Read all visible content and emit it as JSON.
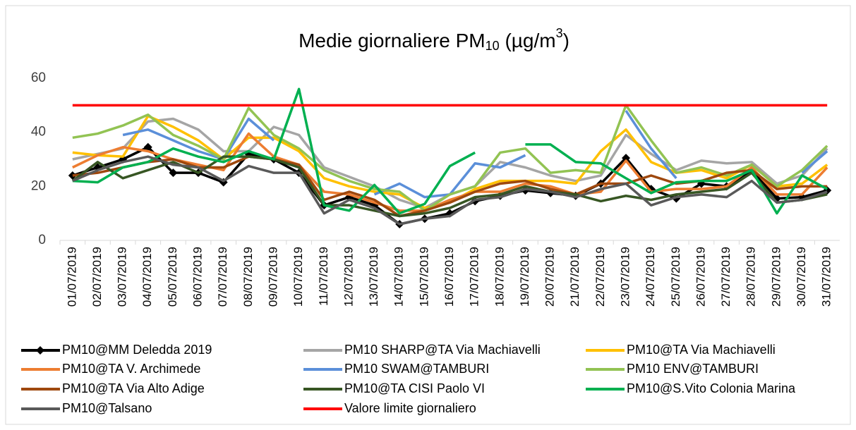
{
  "chart_data": {
    "type": "line",
    "title": [
      "Medie giornaliere PM",
      "10",
      " (µg/m",
      "3",
      ")"
    ],
    "categories": [
      "01/07/2019",
      "02/07/2019",
      "03/07/2019",
      "04/07/2019",
      "05/07/2019",
      "06/07/2019",
      "07/07/2019",
      "08/07/2019",
      "09/07/2019",
      "10/07/2019",
      "11/07/2019",
      "12/07/2019",
      "13/07/2019",
      "14/07/2019",
      "15/07/2019",
      "16/07/2019",
      "17/07/2019",
      "18/07/2019",
      "19/07/2019",
      "20/07/2019",
      "21/07/2019",
      "22/07/2019",
      "23/07/2019",
      "24/07/2019",
      "25/07/2019",
      "26/07/2019",
      "27/07/2019",
      "28/07/2019",
      "29/07/2019",
      "30/07/2019",
      "31/07/2019"
    ],
    "ylim": [
      0,
      60
    ],
    "yticks": [
      0,
      20,
      40,
      60
    ],
    "grid": false,
    "series": [
      {
        "name": "PM10@MM Deledda 2019",
        "color": "#000000",
        "marker": "diamond",
        "values": [
          24,
          27,
          30,
          34.5,
          25,
          25,
          21.5,
          32,
          30,
          25,
          13,
          16,
          13,
          6,
          8,
          10,
          14.5,
          16.5,
          18.5,
          17.5,
          16.5,
          21,
          30.5,
          19,
          15.5,
          21,
          20,
          26,
          15.5,
          16,
          18.5
        ]
      },
      {
        "name": "PM10 SHARP@TA Via Machiavelli",
        "color": "#a5a5a5",
        "values": [
          30,
          32,
          34,
          44,
          45,
          41,
          33,
          33,
          42,
          39,
          27,
          23.5,
          20,
          15,
          12,
          17,
          20,
          29,
          27,
          24,
          22,
          24,
          39,
          32,
          26,
          29.5,
          28.5,
          29,
          21,
          24,
          34
        ]
      },
      {
        "name": "PM10@TA Via Machiavelli",
        "color": "#ffc000",
        "values": [
          32.5,
          31.5,
          31,
          46,
          42,
          37,
          30,
          38,
          38,
          33,
          23,
          20,
          18,
          17,
          12,
          14,
          19,
          22,
          22,
          22,
          21,
          33,
          41,
          29,
          25,
          26,
          23,
          28,
          20,
          21,
          28
        ]
      },
      {
        "name": "PM10@TA V. Archimede",
        "color": "#ed7d31",
        "values": [
          27,
          31.5,
          34.5,
          33,
          30,
          28,
          26,
          39.5,
          31,
          28,
          18,
          17,
          14,
          11,
          11,
          15,
          18,
          18,
          21,
          20,
          17,
          18,
          29.5,
          18,
          19,
          19,
          20,
          27,
          17,
          17,
          27
        ]
      },
      {
        "name": "PM10 SWAM@TAMBURI",
        "color": "#5b8fd9",
        "values": [
          null,
          null,
          39,
          41,
          37,
          33,
          30,
          45,
          37,
          null,
          null,
          null,
          17,
          21,
          16,
          17,
          28.5,
          27,
          31.5,
          null,
          null,
          null,
          48,
          34,
          23,
          null,
          null,
          null,
          null,
          25,
          33
        ]
      },
      {
        "name": "PM10 ENV@TAMBURI",
        "color": "#92c353",
        "values": [
          38,
          39.5,
          42.5,
          46.5,
          39,
          35,
          30,
          49,
          39,
          34,
          26,
          22,
          19,
          18,
          11,
          17,
          20,
          32.5,
          34,
          25,
          26,
          25,
          50,
          37,
          25,
          27,
          24,
          28,
          20,
          26,
          35
        ]
      },
      {
        "name": "PM10@TA Via Alto Adige",
        "color": "#9e480e",
        "values": [
          24,
          25,
          27,
          29,
          30,
          27,
          27,
          31,
          30,
          28,
          15,
          18,
          15,
          9,
          11,
          14,
          18,
          21,
          22,
          19,
          17,
          21,
          21,
          24,
          21,
          22,
          25,
          26,
          19,
          20,
          20
        ]
      },
      {
        "name": "PM10@TA CISI Paolo VI",
        "color": "#375623",
        "values": [
          22,
          29,
          23,
          26,
          29,
          25,
          31,
          31,
          30,
          27,
          13,
          13,
          11,
          9,
          10,
          12,
          16,
          17,
          20,
          18,
          17,
          14.5,
          16.5,
          15,
          17,
          18,
          19,
          25,
          14,
          15,
          17
        ]
      },
      {
        "name": "PM10@S.Vito Colonia Marina",
        "color": "#00b050",
        "values": [
          22,
          21.5,
          27,
          29,
          34,
          31,
          29,
          33,
          30,
          56,
          13,
          11,
          20.5,
          10,
          13.5,
          27.5,
          32.5,
          null,
          35.5,
          35.5,
          29,
          28.5,
          23,
          17.5,
          21.5,
          22,
          22,
          26,
          10,
          24,
          19
        ]
      },
      {
        "name": "PM10@Talsano",
        "color": "#595959",
        "values": [
          22,
          26,
          29,
          31,
          28,
          27,
          22,
          27.5,
          25,
          25,
          10,
          15,
          12,
          6,
          8,
          9,
          15,
          16,
          19,
          18,
          16,
          19,
          21,
          13,
          16,
          17,
          16,
          22,
          14,
          15,
          18
        ]
      },
      {
        "name": "Valore limite giornaliero",
        "color": "#ff0000",
        "values": [
          50,
          50,
          50,
          50,
          50,
          50,
          50,
          50,
          50,
          50,
          50,
          50,
          50,
          50,
          50,
          50,
          50,
          50,
          50,
          50,
          50,
          50,
          50,
          50,
          50,
          50,
          50,
          50,
          50,
          50,
          50
        ]
      }
    ]
  }
}
